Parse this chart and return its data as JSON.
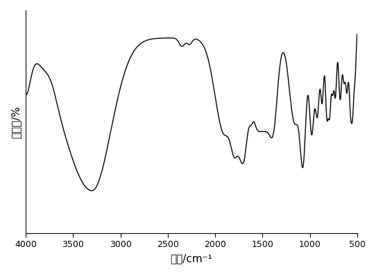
{
  "xlabel": "波数/cm⁻¹",
  "ylabel": "透过率/%",
  "xlim": [
    4000,
    500
  ],
  "xticks": [
    4000,
    3500,
    3000,
    2500,
    2000,
    1500,
    1000,
    500
  ],
  "background_color": "#ffffff",
  "line_color": "#000000",
  "line_width": 1.0
}
